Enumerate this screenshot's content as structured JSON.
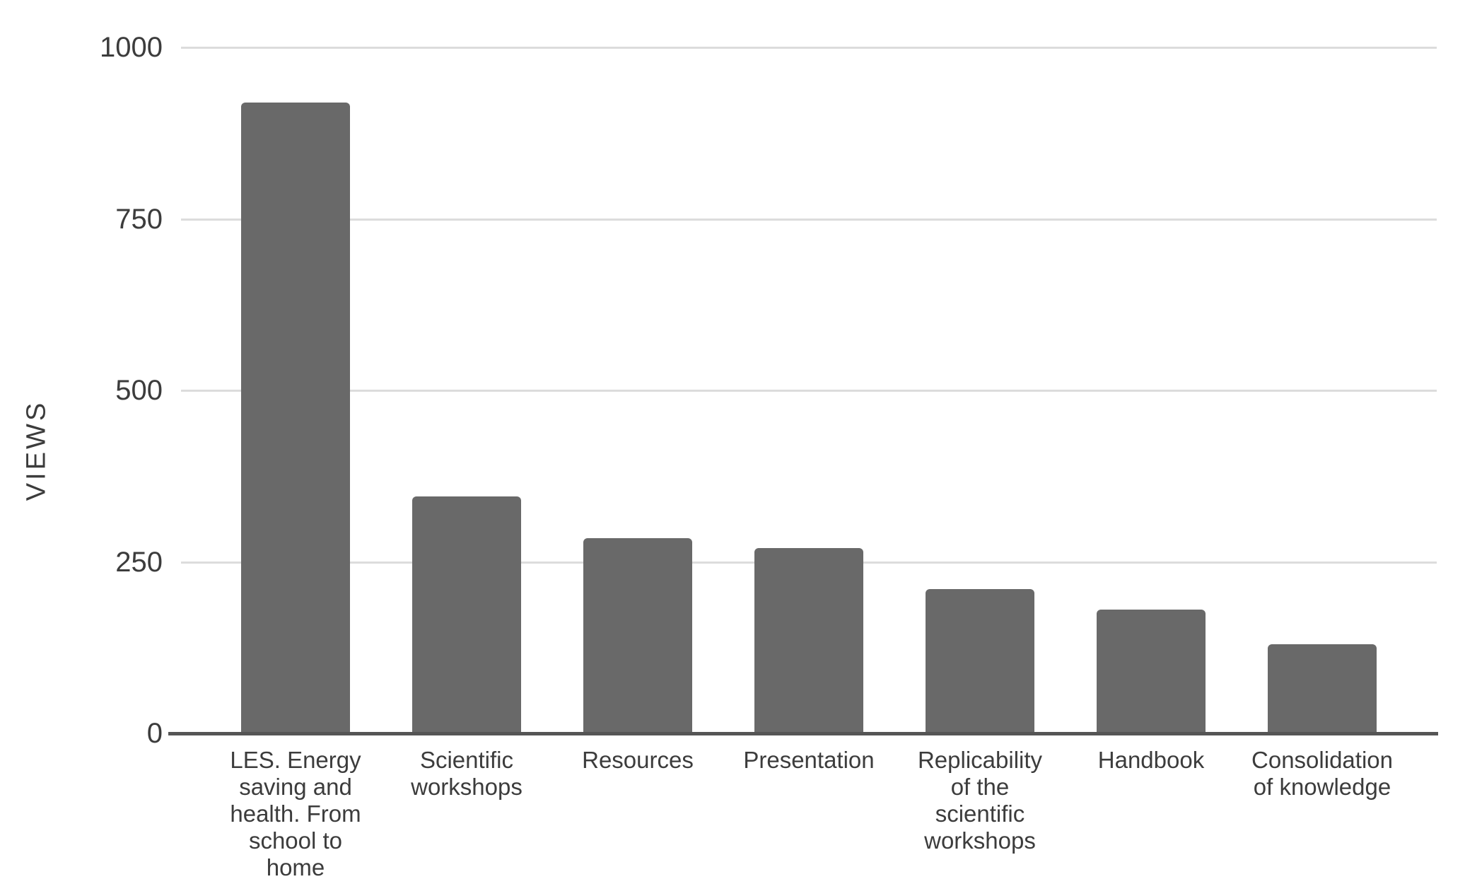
{
  "chart_data": {
    "type": "bar",
    "title": "",
    "xlabel": "",
    "ylabel": "VIEWS",
    "categories": [
      "LES. Energy saving and health. From school to home",
      "Scientific workshops",
      "Resources",
      "Presentation",
      "Replicability of the scientific workshops",
      "Handbook",
      "Consolidation of knowledge"
    ],
    "values": [
      920,
      345,
      285,
      270,
      210,
      180,
      130
    ],
    "yticks": [
      0,
      250,
      500,
      750,
      1000
    ],
    "ylim": [
      0,
      1000
    ],
    "grid": "horizontal-gridlines",
    "legend": "none",
    "tick_label_lines": [
      [
        "LES. Energy",
        "saving and",
        "health. From",
        "school to",
        "home"
      ],
      [
        "Scientific",
        "workshops"
      ],
      [
        "Resources"
      ],
      [
        "Presentation"
      ],
      [
        "Replicability",
        "of the",
        "scientific",
        "workshops"
      ],
      [
        "Handbook"
      ],
      [
        "Consolidation",
        "of knowledge"
      ]
    ],
    "colors": {
      "bar": "#696969",
      "gridline": "#dcdcdc",
      "axis": "#555555",
      "text": "#3c3c3c"
    }
  }
}
